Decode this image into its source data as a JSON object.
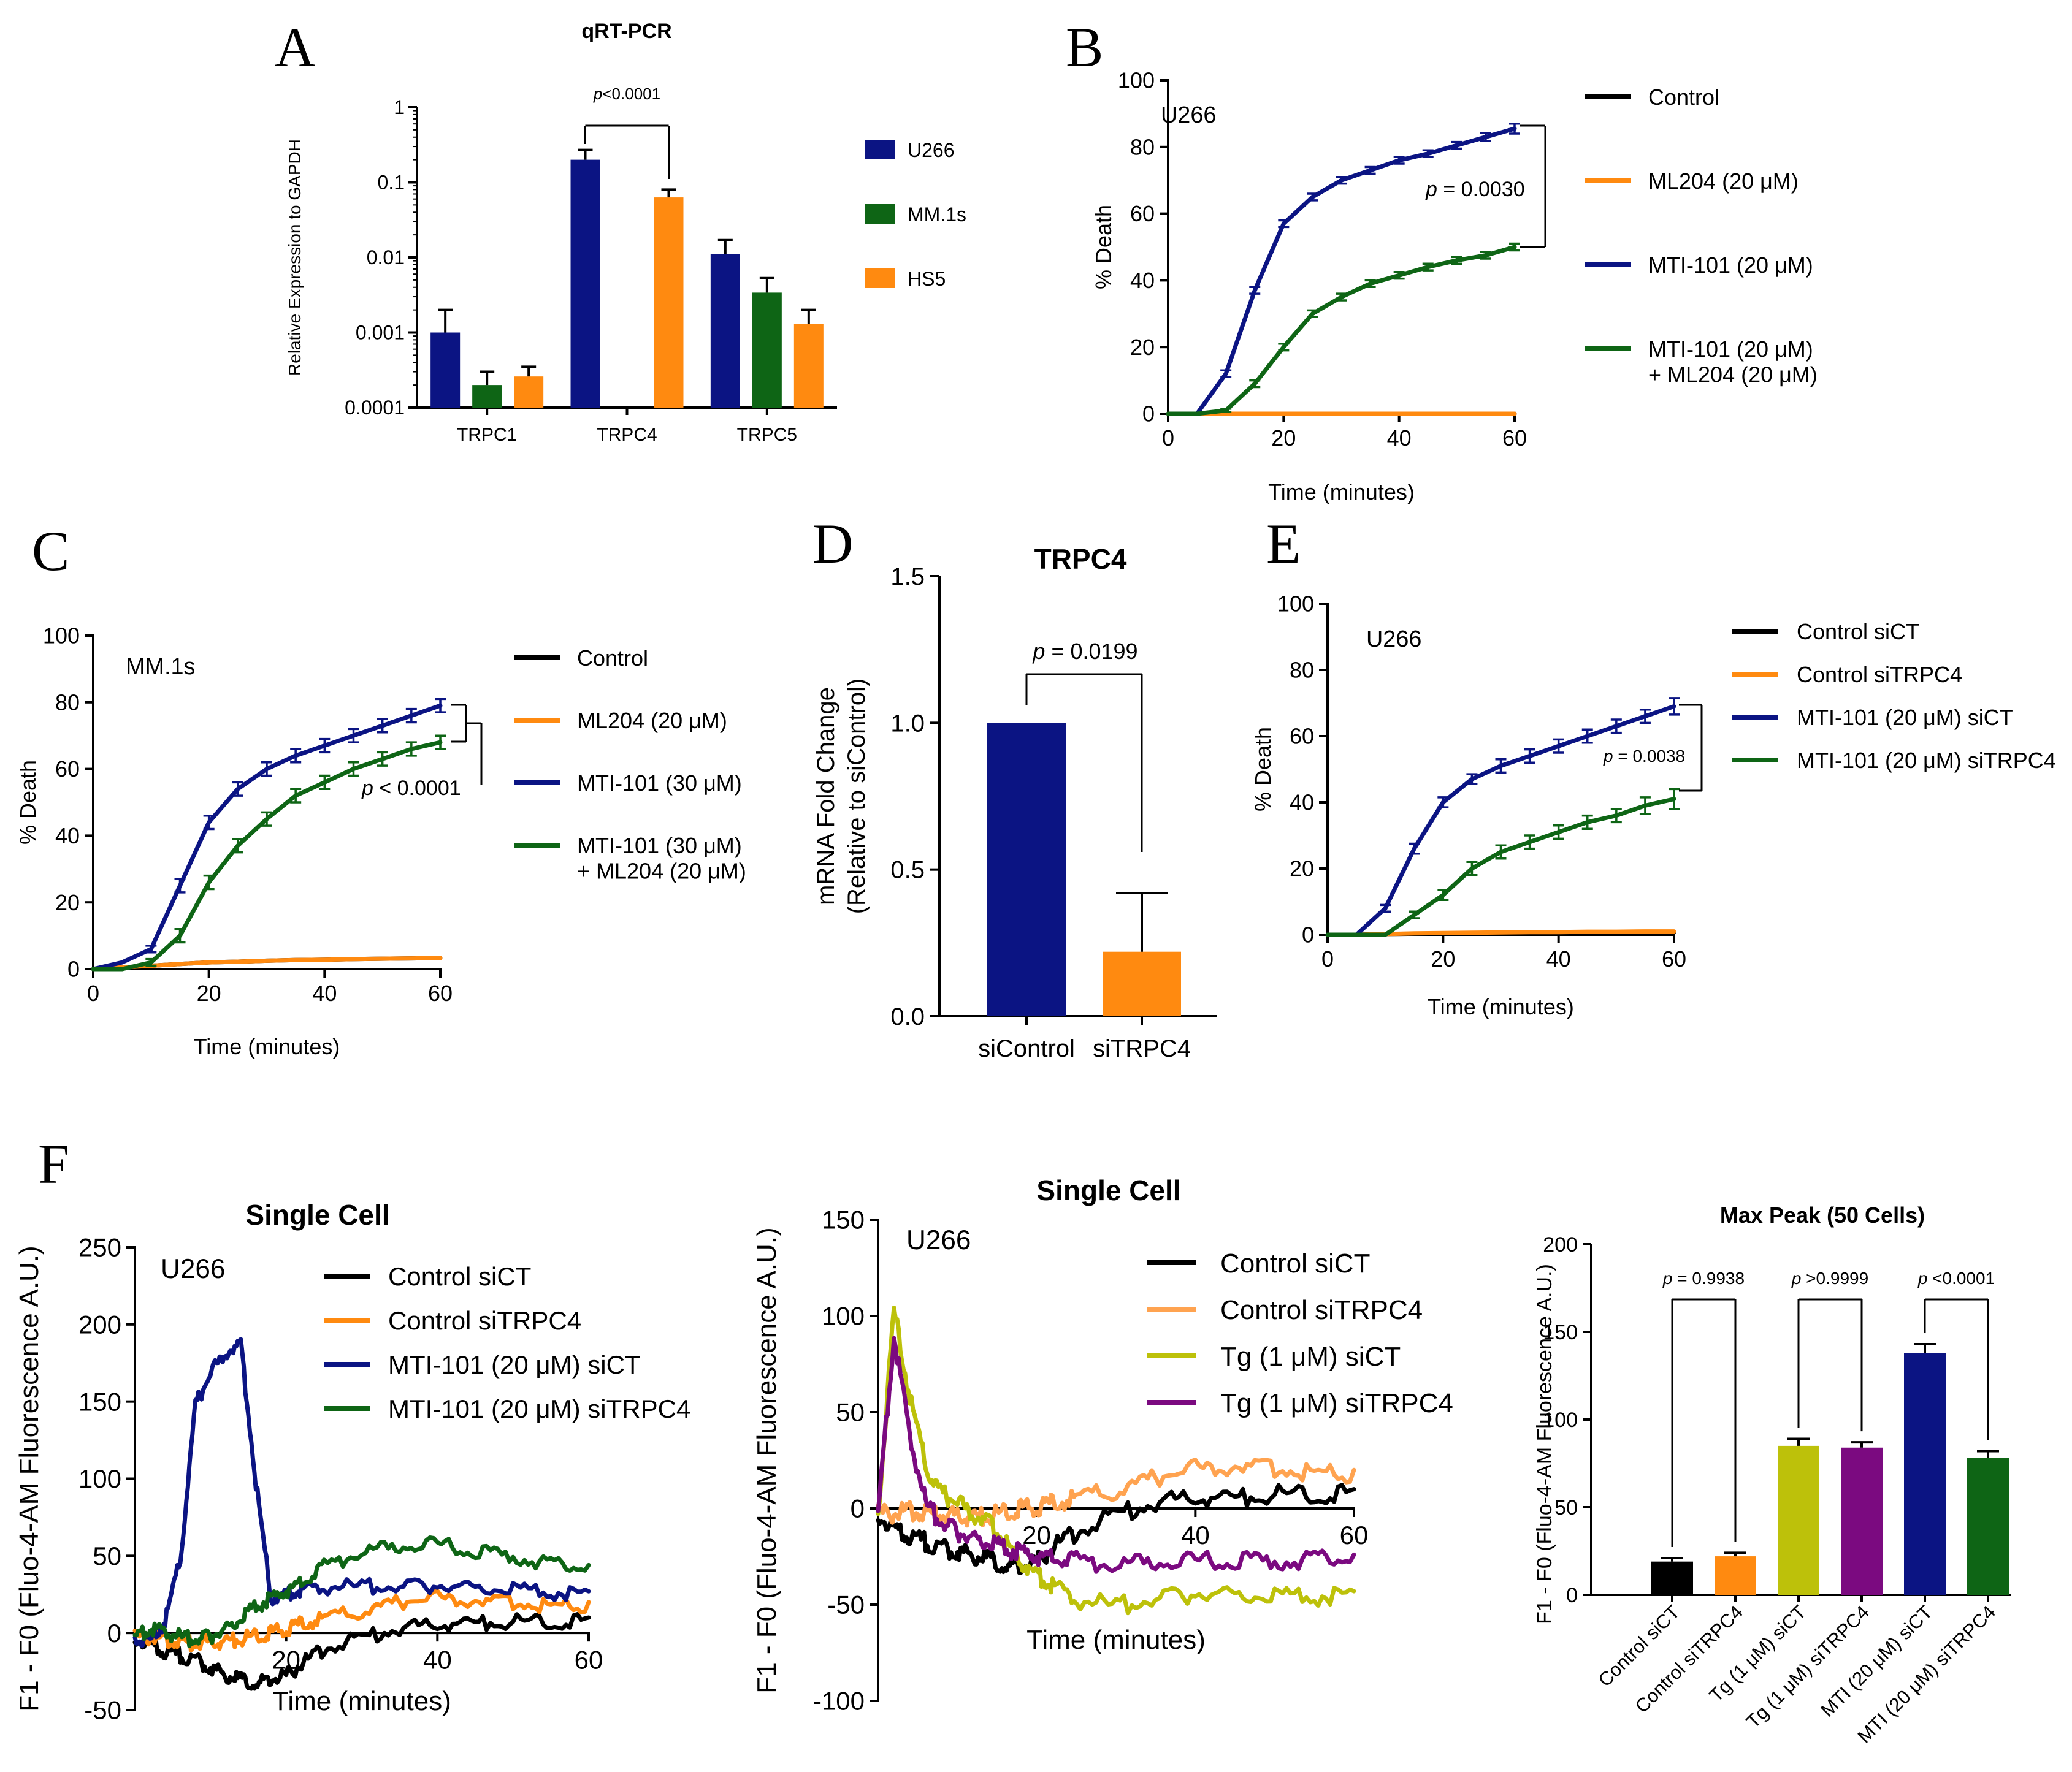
{
  "colors": {
    "navy": "#0b1483",
    "green": "#0e6515",
    "orange": "#ff8a10",
    "black": "#000000",
    "olive": "#bdc10a",
    "purple": "#7b0a80",
    "light_orange": "#ffa350"
  },
  "panels": {
    "A": {
      "letter": "A"
    },
    "B": {
      "letter": "B"
    },
    "C": {
      "letter": "C"
    },
    "D": {
      "letter": "D"
    },
    "E": {
      "letter": "E"
    },
    "F": {
      "letter": "F"
    }
  },
  "chart_data": [
    {
      "id": "A",
      "type": "bar",
      "title": "qRT-PCR",
      "ylabel": "Relative Expression to GAPDH",
      "xlabel": "",
      "yscale": "log",
      "ylim": [
        0.0001,
        1
      ],
      "yticks": [
        "0.0001",
        "0.001",
        "0.01",
        "0.1",
        "1"
      ],
      "categories": [
        "TRPC1",
        "TRPC4",
        "TRPC5"
      ],
      "series": [
        {
          "name": "U266",
          "color": "navy",
          "values": [
            0.001,
            0.2,
            0.011
          ],
          "errors": [
            0.002,
            0.27,
            0.017
          ]
        },
        {
          "name": "MM.1s",
          "color": "green",
          "values": [
            0.0002,
            null,
            0.0034
          ],
          "errors": [
            0.0003,
            null,
            0.0053
          ]
        },
        {
          "name": "HS5",
          "color": "orange",
          "values": [
            0.00026,
            0.063,
            0.0013
          ],
          "errors": [
            0.00035,
            0.08,
            0.002
          ]
        }
      ],
      "annotations": [
        {
          "text_italic": "p",
          "text": "<0.0001"
        }
      ],
      "legend_position": "right"
    },
    {
      "id": "B",
      "type": "line",
      "title": "",
      "label": "U266",
      "xlabel": "Time (minutes)",
      "ylabel": "% Death",
      "xlim": [
        0,
        60
      ],
      "ylim": [
        0,
        100
      ],
      "xticks": [
        "0",
        "20",
        "40",
        "60"
      ],
      "yticks": [
        "0",
        "20",
        "40",
        "60",
        "80",
        "100"
      ],
      "x": [
        0,
        5,
        10,
        15,
        20,
        25,
        30,
        35,
        40,
        45,
        50,
        55,
        60
      ],
      "series": [
        {
          "name": "Control",
          "color": "black",
          "values": [
            0,
            0,
            0,
            0,
            0,
            0,
            0,
            0,
            0,
            0,
            0,
            0,
            0
          ]
        },
        {
          "name": "ML204 (20 μM)",
          "color": "orange",
          "values": [
            0,
            0,
            0,
            0,
            0,
            0,
            0,
            0,
            0,
            0,
            0,
            0,
            0
          ]
        },
        {
          "name": "MTI-101 (20 μM)",
          "color": "navy",
          "values": [
            0,
            0,
            12,
            37,
            57,
            65,
            70,
            73,
            76,
            78,
            80.5,
            83,
            85.5
          ],
          "errors": [
            0,
            0,
            1,
            1,
            1,
            1,
            1,
            1,
            1,
            1,
            1,
            1.2,
            1.5
          ]
        },
        {
          "name": "MTI-101 (20 μM)",
          "name_line2": "+ ML204 (20 μM)",
          "color": "green",
          "values": [
            0,
            0,
            1,
            9,
            20,
            30,
            35,
            39,
            41.5,
            44,
            46,
            47.5,
            50
          ],
          "errors": [
            0,
            0,
            0.5,
            1,
            1,
            1,
            1,
            1,
            1,
            1,
            1,
            1,
            1
          ]
        }
      ],
      "annotations": [
        {
          "text_italic": "p",
          "text": " = 0.0030"
        }
      ],
      "legend_position": "right"
    },
    {
      "id": "C",
      "type": "line",
      "title": "",
      "label": "MM.1s",
      "xlabel": "Time (minutes)",
      "ylabel": "% Death",
      "xlim": [
        0,
        60
      ],
      "ylim": [
        0,
        100
      ],
      "xticks": [
        "0",
        "20",
        "40",
        "60"
      ],
      "yticks": [
        "0",
        "20",
        "40",
        "60",
        "80",
        "100"
      ],
      "x": [
        0,
        5,
        10,
        15,
        20,
        25,
        30,
        35,
        40,
        45,
        50,
        55,
        60
      ],
      "series": [
        {
          "name": "Control",
          "color": "black",
          "values": [
            0,
            0.5,
            1,
            1.5,
            2,
            2.2,
            2.5,
            2.7,
            2.8,
            3,
            3.1,
            3.2,
            3.3
          ]
        },
        {
          "name": "ML204 (20 μM)",
          "color": "orange",
          "values": [
            0,
            0.5,
            1,
            1.5,
            2,
            2.2,
            2.5,
            2.7,
            2.8,
            3,
            3.1,
            3.2,
            3.3
          ]
        },
        {
          "name": "MTI-101 (30 μM)",
          "color": "navy",
          "values": [
            0,
            2,
            6,
            25,
            44,
            54,
            60,
            64,
            67,
            70,
            73,
            76,
            79
          ],
          "errors": [
            0,
            0,
            1,
            2,
            2,
            2,
            2,
            2,
            2,
            2,
            2,
            2,
            2
          ]
        },
        {
          "name": "MTI-101 (30 μM)",
          "name_line2": "+ ML204 (20 μM)",
          "color": "green",
          "values": [
            0,
            0,
            2,
            10,
            26,
            37,
            45,
            52,
            56,
            60,
            63,
            66,
            68
          ],
          "errors": [
            0,
            0,
            1,
            2,
            2,
            2,
            2,
            2,
            2,
            2,
            2,
            2,
            2
          ]
        }
      ],
      "annotations": [
        {
          "text_italic": "p",
          "text": " < 0.0001"
        }
      ],
      "legend_position": "right"
    },
    {
      "id": "D",
      "type": "bar",
      "title": "TRPC4",
      "ylabel": "mRNA Fold Change",
      "ylabel2": "(Relative to siControl)",
      "xlabel": "",
      "ylim": [
        0,
        1.5
      ],
      "yticks": [
        "0.0",
        "0.5",
        "1.0",
        "1.5"
      ],
      "categories": [
        "siControl",
        "siTRPC4"
      ],
      "values": [
        1.0,
        0.22
      ],
      "errors": [
        0,
        0.42
      ],
      "bar_colors": [
        "navy",
        "orange"
      ],
      "annotations": [
        {
          "text_italic": "p",
          "text": " = 0.0199"
        }
      ]
    },
    {
      "id": "E",
      "type": "line",
      "title": "",
      "label": "U266",
      "xlabel": "Time (minutes)",
      "ylabel": "% Death",
      "xlim": [
        0,
        60
      ],
      "ylim": [
        0,
        100
      ],
      "xticks": [
        "0",
        "20",
        "40",
        "60"
      ],
      "yticks": [
        "0",
        "20",
        "40",
        "60",
        "80",
        "100"
      ],
      "x": [
        0,
        5,
        10,
        15,
        20,
        25,
        30,
        35,
        40,
        45,
        50,
        55,
        60
      ],
      "series": [
        {
          "name": "Control siCT",
          "color": "black",
          "values": [
            0,
            0,
            0.2,
            0.3,
            0.4,
            0.5,
            0.5,
            0.6,
            0.6,
            0.7,
            0.7,
            0.7,
            0.8
          ]
        },
        {
          "name": "Control siTRPC4",
          "color": "orange",
          "values": [
            0,
            0,
            0.2,
            0.4,
            0.5,
            0.6,
            0.7,
            0.8,
            0.8,
            0.9,
            0.9,
            1,
            1
          ]
        },
        {
          "name": "MTI-101 (20 μM) siCT",
          "color": "navy",
          "values": [
            0,
            0,
            8,
            26,
            40,
            47,
            51,
            54,
            57,
            60,
            63,
            66,
            69
          ],
          "errors": [
            0,
            0,
            1,
            1.5,
            1.5,
            1.5,
            2,
            2,
            2,
            2,
            2,
            2,
            2.5
          ]
        },
        {
          "name": "MTI-101 (20 μM) siTRPC4",
          "color": "green",
          "values": [
            0,
            0,
            0,
            6,
            12,
            20,
            25,
            28,
            31,
            34,
            36,
            39,
            41
          ],
          "errors": [
            0,
            0,
            0,
            1,
            1.5,
            2,
            2,
            2,
            2,
            2,
            2,
            2.5,
            3
          ]
        }
      ],
      "annotations": [
        {
          "text_italic": "p",
          "text": " = 0.0038"
        }
      ],
      "legend_position": "right"
    },
    {
      "id": "F1",
      "type": "line",
      "title": "Single Cell",
      "label": "U266",
      "xlabel": "Time (minutes)",
      "ylabel": "F1 - F0 (Fluo-4-AM Fluorescence A.U.)",
      "xlim": [
        0,
        60
      ],
      "ylim": [
        -50,
        250
      ],
      "xticks": [
        "20",
        "40",
        "60"
      ],
      "yticks": [
        "-50",
        "0",
        "50",
        "100",
        "150",
        "200",
        "250"
      ],
      "x": [
        0,
        2,
        4,
        6,
        8,
        10,
        12,
        14,
        16,
        18,
        20,
        22,
        25,
        30,
        35,
        40,
        45,
        50,
        55,
        60
      ],
      "series": [
        {
          "name": "Control siCT",
          "color": "black",
          "values": [
            0,
            -5,
            -10,
            -12,
            -15,
            -20,
            -25,
            -28,
            -30,
            -28,
            -25,
            -18,
            -8,
            0,
            5,
            8,
            9,
            10,
            9,
            10
          ]
        },
        {
          "name": "Control siTRPC4",
          "color": "orange",
          "values": [
            0,
            0,
            -2,
            -3,
            -4,
            -4,
            -3,
            -1,
            0,
            2,
            5,
            8,
            12,
            17,
            22,
            25,
            24,
            22,
            20,
            20
          ]
        },
        {
          "name": "MTI-101 (20 μM) siCT",
          "color": "navy",
          "values": [
            0,
            -3,
            10,
            50,
            150,
            170,
            185,
            189,
            100,
            25,
            28,
            30,
            32,
            33,
            32,
            33,
            32,
            31,
            29,
            27
          ]
        },
        {
          "name": "MTI-101 (20 μM) siTRPC4",
          "color": "green",
          "values": [
            0,
            5,
            3,
            0,
            -2,
            0,
            5,
            12,
            20,
            25,
            30,
            35,
            45,
            55,
            58,
            60,
            55,
            52,
            47,
            44
          ]
        }
      ],
      "legend_position": "top-right"
    },
    {
      "id": "F2",
      "type": "line",
      "title": "Single Cell",
      "label": "U266",
      "xlabel": "Time (minutes)",
      "ylabel": "F1 - F0 (Fluo-4-AM Fluorescence A.U.)",
      "xlim": [
        0,
        60
      ],
      "ylim": [
        -100,
        150
      ],
      "xticks": [
        "20",
        "40",
        "60"
      ],
      "yticks": [
        "-100",
        "-50",
        "0",
        "50",
        "100",
        "150"
      ],
      "x": [
        0,
        2,
        4,
        6,
        8,
        10,
        12,
        14,
        16,
        18,
        20,
        22,
        25,
        30,
        35,
        40,
        45,
        50,
        55,
        60
      ],
      "series": [
        {
          "name": "Control siCT",
          "color": "black",
          "values": [
            0,
            -8,
            -12,
            -15,
            -18,
            -20,
            -22,
            -24,
            -27,
            -28,
            -25,
            -18,
            -10,
            0,
            5,
            8,
            8,
            10,
            9,
            10
          ]
        },
        {
          "name": "Control siTRPC4",
          "color": "light_orange",
          "values": [
            0,
            0,
            1,
            0,
            -1,
            -2,
            -2,
            -1,
            0,
            2,
            3,
            5,
            8,
            12,
            18,
            23,
            25,
            23,
            21,
            20
          ]
        },
        {
          "name": "Tg (1 μM) siCT",
          "color": "olive",
          "values": [
            0,
            105,
            60,
            25,
            10,
            5,
            0,
            -5,
            -15,
            -25,
            -32,
            -38,
            -45,
            -48,
            -45,
            -42,
            -42,
            -43,
            -43,
            -43
          ]
        },
        {
          "name": "Tg (1 μM) siTRPC4",
          "color": "purple",
          "values": [
            0,
            92,
            40,
            5,
            -5,
            -10,
            -13,
            -15,
            -18,
            -20,
            -22,
            -23,
            -25,
            -27,
            -26,
            -25,
            -25,
            -25,
            -24,
            -24
          ]
        }
      ],
      "legend_position": "top-right"
    },
    {
      "id": "F3",
      "type": "bar",
      "title": "Max Peak (50 Cells)",
      "ylabel": "F1 - F0 (Fluo-4-AM Fluorescence A.U.)",
      "xlabel": "",
      "ylim": [
        0,
        200
      ],
      "yticks": [
        "0",
        "50",
        "100",
        "150",
        "200"
      ],
      "categories": [
        "Control siCT",
        "Control siTRPC4",
        "Tg (1 μM) siCT",
        "Tg (1 μM) siTRPC4",
        "MTI (20 μM) siCT",
        "MTI (20 μM) siTRPC4"
      ],
      "values": [
        19,
        22,
        85,
        84,
        138,
        78
      ],
      "errors": [
        2,
        2,
        4,
        3,
        5,
        4
      ],
      "bar_colors": [
        "black",
        "orange",
        "olive",
        "purple",
        "navy",
        "green"
      ],
      "annotations": [
        {
          "text_italic": "p",
          "text": " = 0.9938"
        },
        {
          "text_italic": "p",
          "text": " >0.9999"
        },
        {
          "text_italic": "p",
          "text": " <0.0001"
        }
      ]
    }
  ]
}
